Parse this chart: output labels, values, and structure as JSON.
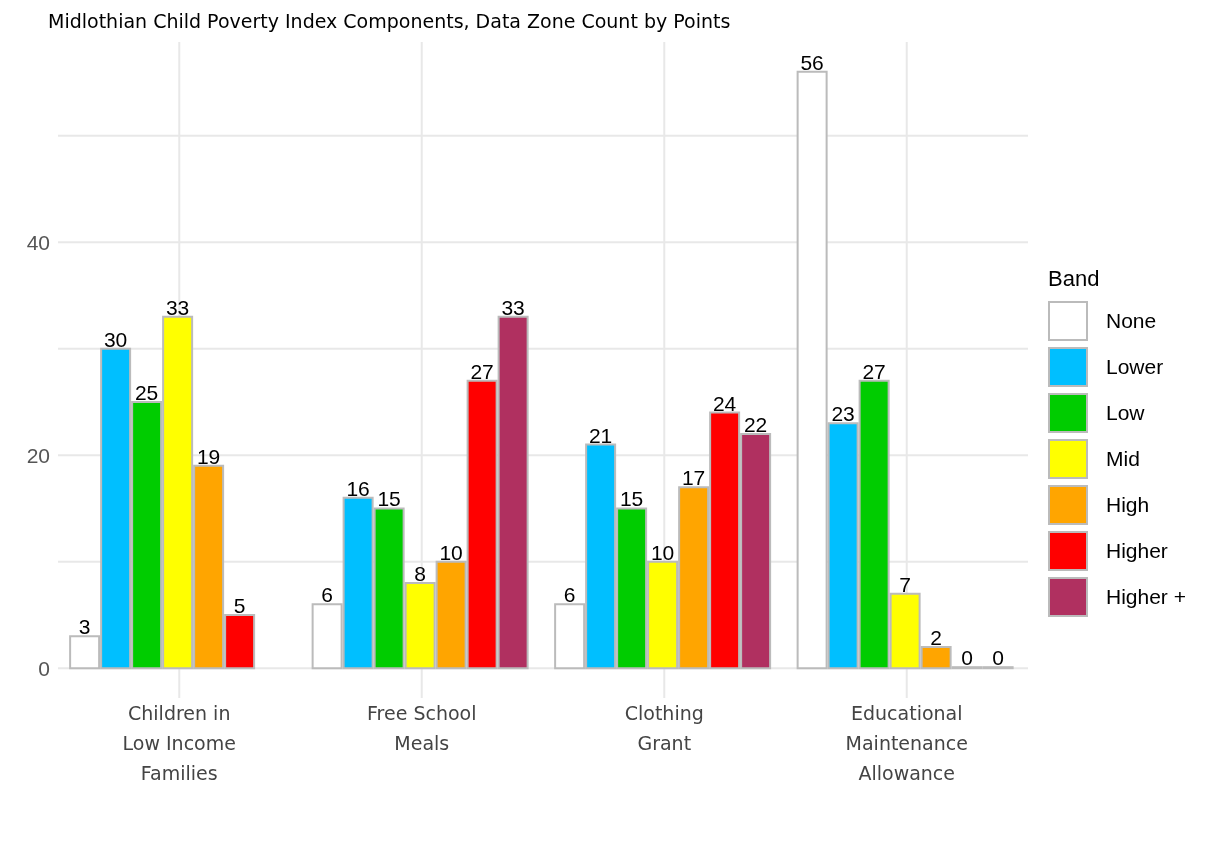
{
  "chart_data": {
    "type": "bar",
    "title": "Midlothian Child Poverty Index Components, Data Zone Count by Points",
    "categories": [
      "Children in Low Income Families",
      "Free School Meals",
      "Clothing Grant",
      "Educational Maintenance Allowance"
    ],
    "series": [
      {
        "name": "None",
        "color": "#ffffff",
        "values": [
          3,
          6,
          6,
          56
        ]
      },
      {
        "name": "Lower",
        "color": "#00bfff",
        "values": [
          30,
          16,
          21,
          23
        ]
      },
      {
        "name": "Low",
        "color": "#00cc00",
        "values": [
          25,
          15,
          15,
          27
        ]
      },
      {
        "name": "Mid",
        "color": "#ffff00",
        "values": [
          33,
          8,
          10,
          7
        ]
      },
      {
        "name": "High",
        "color": "#ffa500",
        "values": [
          19,
          10,
          17,
          2
        ]
      },
      {
        "name": "Higher",
        "color": "#ff0000",
        "values": [
          5,
          27,
          24,
          0
        ]
      },
      {
        "name": "Higher +",
        "color": "#b03060",
        "values": [
          null,
          33,
          22,
          0
        ]
      }
    ],
    "ylim": [
      -2.8,
      58.8
    ],
    "yticks": [
      0,
      {
        "value": 10,
        "label": null
      },
      20,
      {
        "value": 30,
        "label": null
      },
      40,
      {
        "value": 50,
        "label": null
      }
    ],
    "grid": true,
    "legend": "right",
    "legend_title": "Band",
    "data_labels": true
  }
}
